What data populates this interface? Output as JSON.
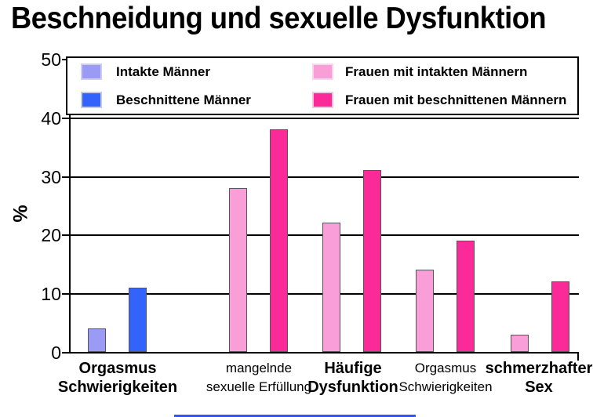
{
  "title": "Beschneidung und sexuelle Dysfunktion",
  "chart_data": {
    "type": "bar",
    "title": "Beschneidung und sexuelle Dysfunktion",
    "xlabel": "",
    "ylabel": "%",
    "ylim": [
      0,
      50
    ],
    "yticks": [
      0,
      10,
      20,
      30,
      40,
      50
    ],
    "grid": true,
    "legend_position": "top-inside",
    "legend": [
      {
        "label": "Intakte Männer",
        "color": "#9b9bf5",
        "border": "#ccccff"
      },
      {
        "label": "Beschnittene Männer",
        "color": "#3363fa",
        "border": "#c2c9ff"
      },
      {
        "label": "Frauen mit intakten Männern",
        "color": "#fa9ed8",
        "border": "#ffd4ee"
      },
      {
        "label": "Frauen mit beschnittenen Männern",
        "color": "#fa2b98",
        "border": "#ffc2e2"
      }
    ],
    "groups": [
      {
        "label_line1": "Orgasmus",
        "label_line2": "Schwierigkeiten",
        "bold": true,
        "bars": [
          {
            "series": "Intakte Männer",
            "value": 4
          },
          {
            "series": "Beschnittene Männer",
            "value": 11
          }
        ]
      },
      {
        "label_line1": "mangelnde",
        "label_line2": "sexuelle Erfüllung",
        "bold": false,
        "bars": [
          {
            "series": "Frauen mit intakten Männern",
            "value": 28
          },
          {
            "series": "Frauen mit beschnittenen Männern",
            "value": 38
          }
        ]
      },
      {
        "label_line1": "Häufige",
        "label_line2": "Dysfunktion",
        "bold": true,
        "bars": [
          {
            "series": "Frauen mit intakten Männern",
            "value": 22
          },
          {
            "series": "Frauen mit beschnittenen Männern",
            "value": 31
          }
        ]
      },
      {
        "label_line1": "Orgasmus",
        "label_line2": "Schwierigkeiten",
        "bold": false,
        "bars": [
          {
            "series": "Frauen mit intakten Männern",
            "value": 14
          },
          {
            "series": "Frauen mit beschnittenen Männern",
            "value": 19
          }
        ]
      },
      {
        "label_line1": "schmerzhafter",
        "label_line2": "Sex",
        "bold": true,
        "bars": [
          {
            "series": "Frauen mit intakten Männern",
            "value": 3
          },
          {
            "series": "Frauen mit beschnittenen Männern",
            "value": 12
          }
        ]
      }
    ]
  },
  "decor": {
    "bottom_line_color": "#3355ee"
  }
}
